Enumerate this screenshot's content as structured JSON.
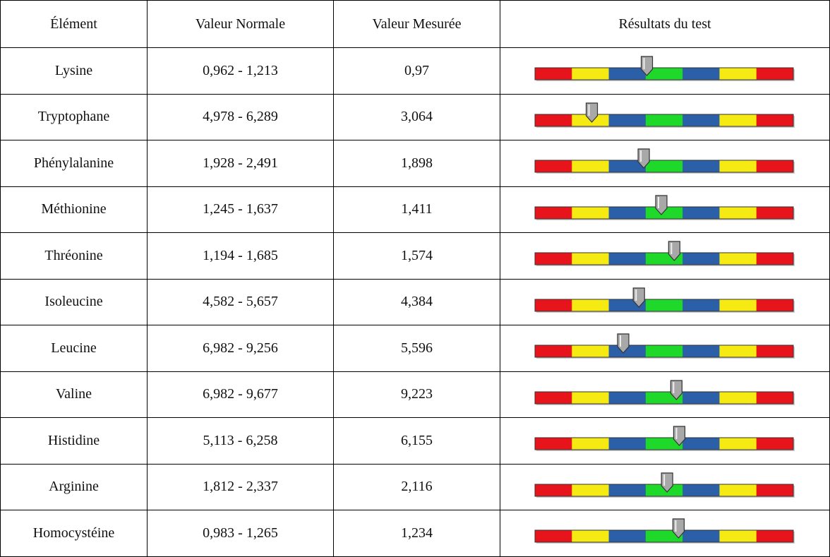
{
  "table": {
    "header": [
      "Élément",
      "Valeur Normale",
      "Valeur Mesurée",
      "Résultats du test"
    ],
    "rows": [
      [
        "Lysine",
        "0,962 - 1,213",
        "0,97"
      ],
      [
        "Tryptophane",
        "4,978 - 6,289",
        "3,064"
      ],
      [
        "Phénylalanine",
        "1,928 - 2,491",
        "1,898"
      ],
      [
        "Méthionine",
        "1,245 - 1,637",
        "1,411"
      ],
      [
        "Thréonine",
        "1,194 - 1,685",
        "1,574"
      ],
      [
        "Isoleucine",
        "4,582 - 5,657",
        "4,384"
      ],
      [
        "Leucine",
        "6,982 - 9,256",
        "5,596"
      ],
      [
        "Valine",
        "6,982 - 9,677",
        "9,223"
      ],
      [
        "Histidine",
        "5,113 - 6,258",
        "6,155"
      ],
      [
        "Arginine",
        "1,812 - 2,337",
        "2,116"
      ],
      [
        "Homocystéine",
        "0,983 - 1,265",
        "1,234"
      ]
    ]
  }
}
